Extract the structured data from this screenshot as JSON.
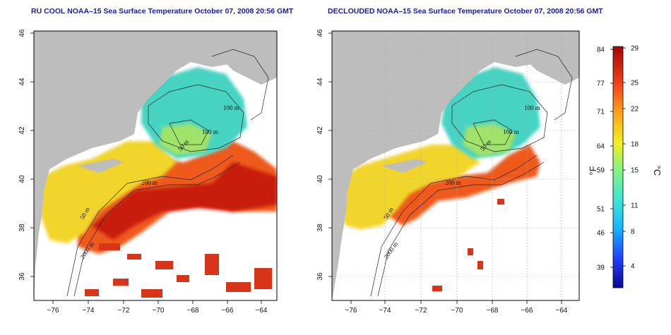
{
  "panels": [
    {
      "id": "left",
      "title": "RU COOL NOAA–15 Sea Surface Temperature October 07, 2008 20:56 GMT",
      "contour_labels": [
        "100 m",
        "100 m",
        "50 m",
        "200 m",
        "50 m",
        "2000 m"
      ]
    },
    {
      "id": "right",
      "title": "DECLOUDED NOAA–15 Sea Surface Temperature October 07, 2008 20:56 GMT",
      "contour_labels": [
        "100 m",
        "100 m",
        "50 m",
        "200 m",
        "50 m",
        "2000 m"
      ]
    }
  ],
  "axes": {
    "lon_ticks": [
      "−76",
      "−74",
      "−72",
      "−70",
      "−68",
      "−66",
      "−64"
    ],
    "lat_ticks": [
      "36",
      "38",
      "40",
      "42",
      "44",
      "46"
    ]
  },
  "colorbar": {
    "fahrenheit_ticks": [
      "84",
      "77",
      "71",
      "64",
      "59",
      "51",
      "46",
      "39"
    ],
    "celsius_ticks": [
      "29",
      "25",
      "22",
      "18",
      "15",
      "11",
      "8",
      "4"
    ],
    "unit_f": "°F",
    "unit_c": "°C"
  },
  "colors": {
    "land": "#bdbdbd",
    "cloud_water": "#ffffff",
    "title": "#1a1aa0"
  }
}
